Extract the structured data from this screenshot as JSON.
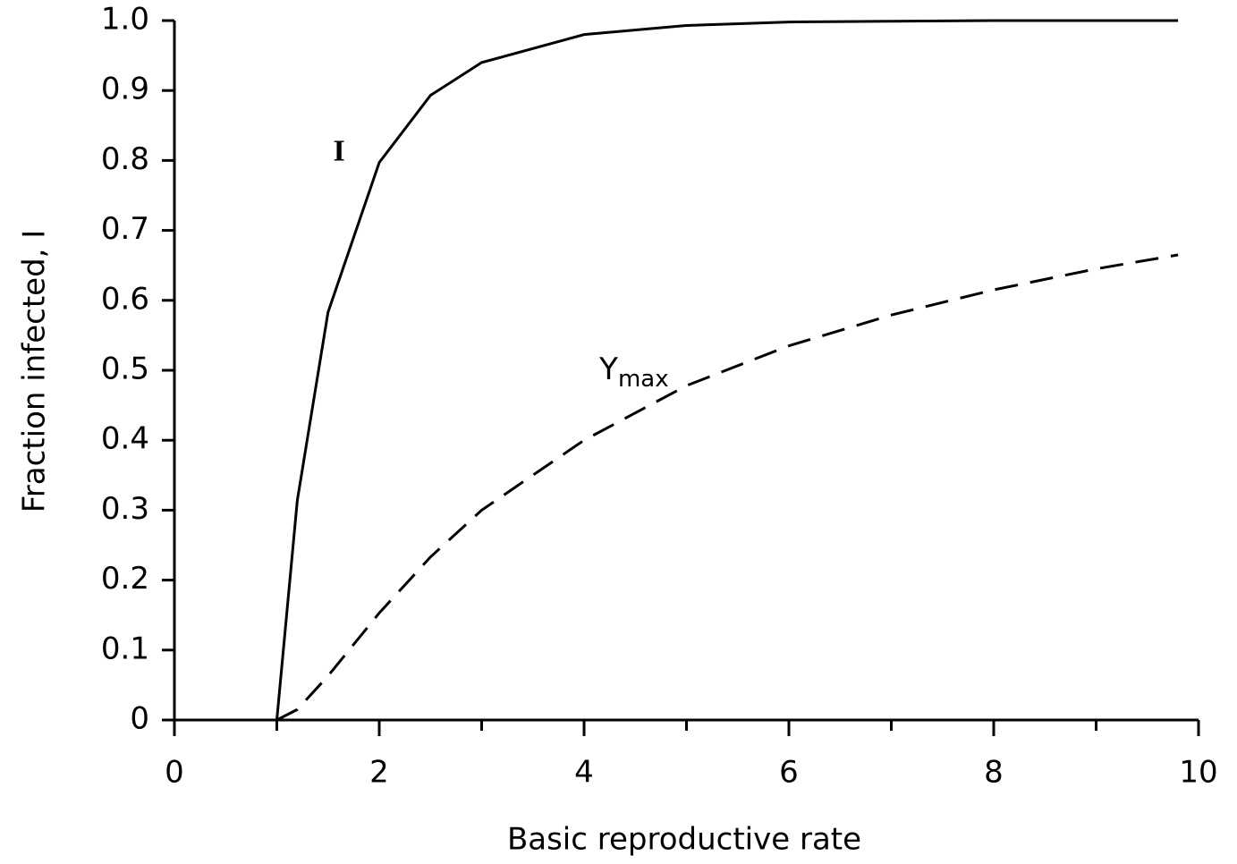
{
  "chart_data": {
    "type": "line",
    "x_label": "Basic reproductive rate",
    "y_label": "Fraction infected, I",
    "x": [
      1,
      1.2,
      1.5,
      2,
      2.5,
      3,
      4,
      5,
      6,
      7,
      8,
      9,
      9.8
    ],
    "series": [
      {
        "color": "#000000",
        "dash": false,
        "values": [
          0,
          0.314,
          0.583,
          0.797,
          0.893,
          0.94,
          0.98,
          0.993,
          0.998,
          0.999,
          1.0,
          1.0,
          1.0
        ]
      },
      {
        "color": "#000000",
        "dash": true,
        "values": [
          0,
          0.015,
          0.063,
          0.153,
          0.233,
          0.3,
          0.4,
          0.478,
          0.535,
          0.579,
          0.615,
          0.645,
          0.665
        ]
      }
    ],
    "annotations": [
      {
        "text": "I",
        "x": 1.55,
        "y": 0.81
      },
      {
        "text": "Y",
        "sub": "max",
        "x": 4.15,
        "y": 0.5
      }
    ],
    "xlim": [
      0,
      10
    ],
    "xticks": [
      0,
      2,
      4,
      6,
      8,
      10
    ],
    "xminor": [
      1,
      3,
      5,
      7,
      9
    ],
    "ylim": [
      0,
      1
    ],
    "yticks": [
      0,
      0.1,
      0.2,
      0.3,
      0.4,
      0.5,
      0.6,
      0.7,
      0.8,
      0.9,
      {
        "value": 1,
        "label": "1.0"
      }
    ],
    "grid": false
  }
}
